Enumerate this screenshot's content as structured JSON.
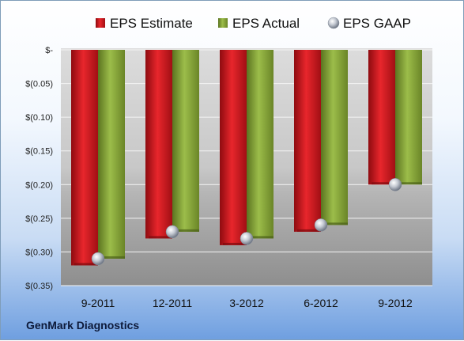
{
  "company": "GenMark Diagnostics",
  "colors": {
    "estimate": "#c3151c",
    "actual": "#7a9a2e",
    "gaap": "#b0b6c0"
  },
  "chart_data": {
    "type": "bar",
    "categories": [
      "9-2011",
      "12-2011",
      "3-2012",
      "6-2012",
      "9-2012"
    ],
    "series": [
      {
        "name": "EPS Estimate",
        "values": [
          -0.32,
          -0.28,
          -0.29,
          -0.27,
          -0.2
        ]
      },
      {
        "name": "EPS Actual",
        "values": [
          -0.31,
          -0.27,
          -0.28,
          -0.26,
          -0.2
        ]
      },
      {
        "name": "EPS GAAP",
        "values": [
          -0.31,
          -0.27,
          -0.28,
          -0.26,
          -0.2
        ],
        "marker": "sphere"
      }
    ],
    "ylim": [
      -0.35,
      0
    ],
    "yticks": [
      0,
      -0.05,
      -0.1,
      -0.15,
      -0.2,
      -0.25,
      -0.3,
      -0.35
    ],
    "ytick_labels": [
      "$-",
      "$(0.05)",
      "$(0.10)",
      "$(0.15)",
      "$(0.20)",
      "$(0.25)",
      "$(0.30)",
      "$(0.35)"
    ],
    "grid": true,
    "legend": "top"
  }
}
